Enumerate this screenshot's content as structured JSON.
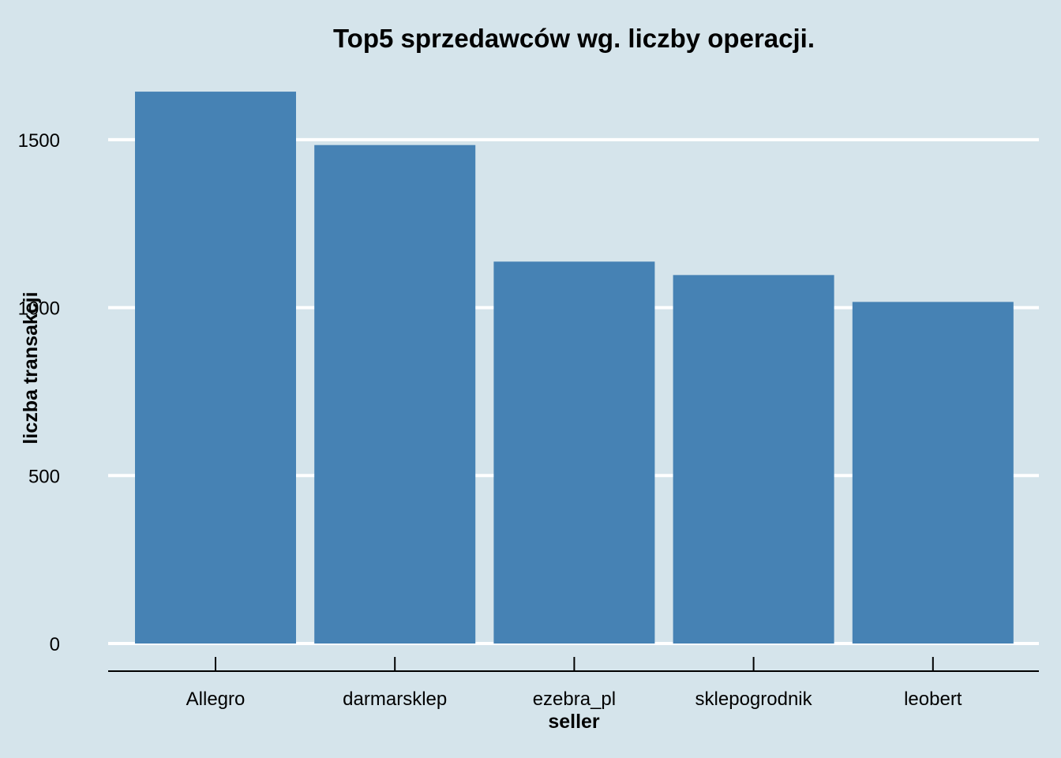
{
  "colors": {
    "background": "#d5e4eb",
    "bar": "#4682b4",
    "gridline": "#ffffff",
    "axis": "#000000"
  },
  "chart_data": {
    "type": "bar",
    "title": "Top5 sprzedawców wg. liczby operacji.",
    "xlabel": "seller",
    "ylabel": "liczba transakcji",
    "categories": [
      "Allegro",
      "darmarsklep",
      "ezebra_pl",
      "sklepogrodnik",
      "leobert"
    ],
    "values": [
      1643,
      1484,
      1137,
      1097,
      1017
    ],
    "ylim": [
      0,
      1643
    ],
    "yticks": [
      0,
      500,
      1000,
      1500
    ],
    "grid": "horizontal major gridlines only",
    "legend": "none"
  }
}
